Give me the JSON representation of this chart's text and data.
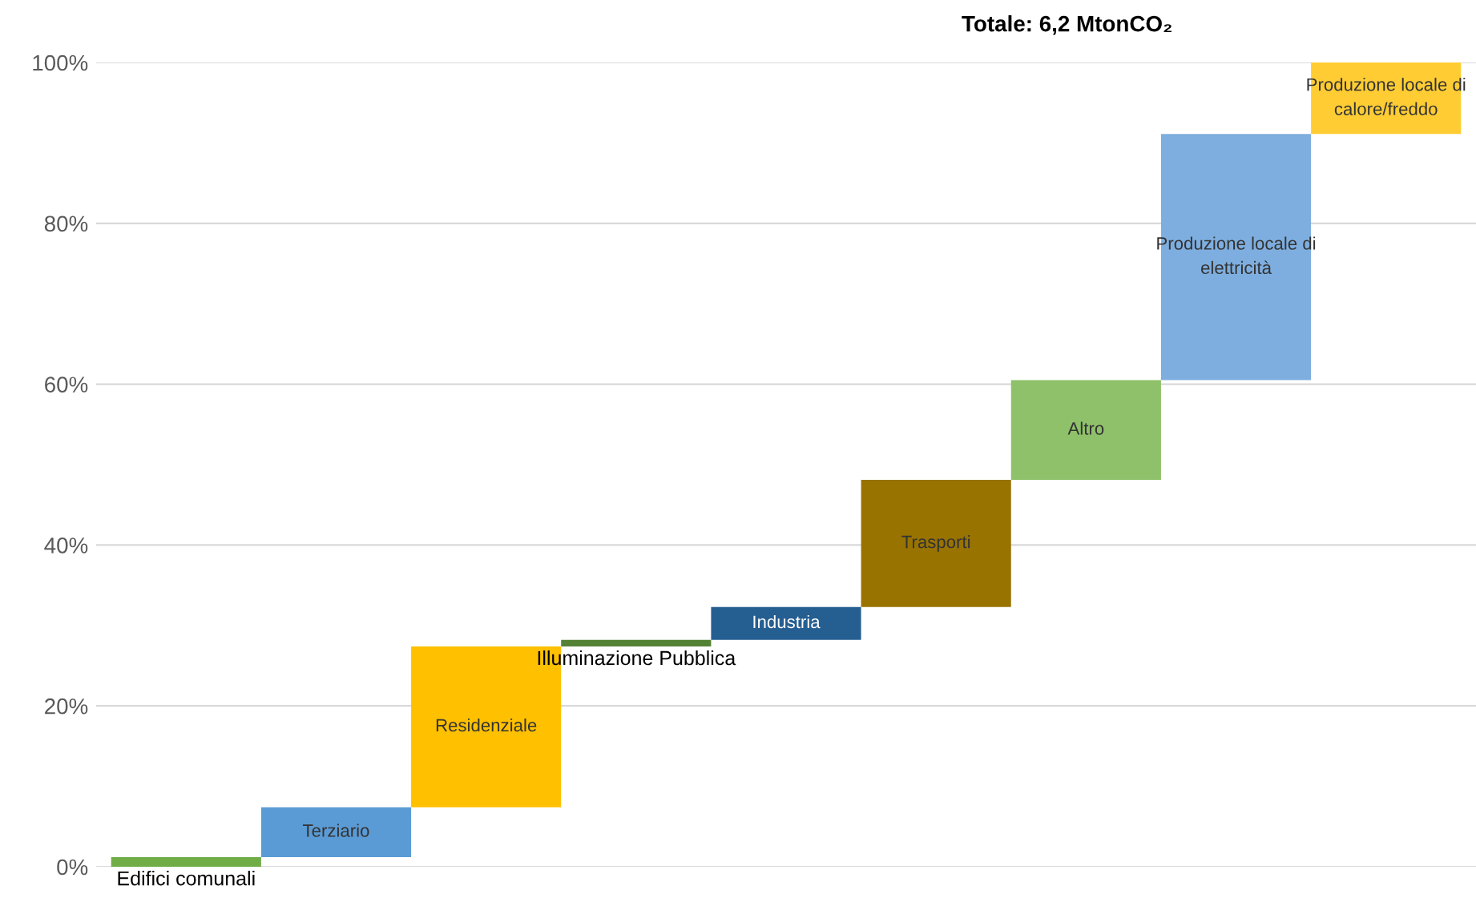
{
  "chart_data": {
    "type": "bar",
    "title": "Totale: 6,2 MtonCO₂",
    "categories": [
      "Edifici comunali",
      "Terziario",
      "Residenziale",
      "Illuminazione Pubblica",
      "Industria",
      "Trasporti",
      "Altro",
      "Produzione locale di\nelettricità",
      "Produzione locale di\ncalore/freddo"
    ],
    "base": [
      0,
      1.2,
      7.4,
      27.4,
      28.2,
      32.3,
      48.1,
      60.5,
      91.1
    ],
    "values": [
      1.2,
      6.2,
      20,
      0.8,
      4.1,
      15.8,
      12.4,
      30.6,
      8.9
    ],
    "colors": [
      "#70ad47",
      "#5b9bd5",
      "#ffc000",
      "#548235",
      "#255e91",
      "#997300",
      "#8fc16a",
      "#7eaedf",
      "#ffcd33"
    ],
    "ylim": [
      0,
      100
    ],
    "yticks": [
      {
        "value": 0,
        "label": "0%"
      },
      {
        "value": 20,
        "label": "20%"
      },
      {
        "value": 40,
        "label": "40%"
      },
      {
        "value": 60,
        "label": "60%"
      },
      {
        "value": 80,
        "label": "80%"
      },
      {
        "value": 100,
        "label": "100%"
      }
    ],
    "grid": "y",
    "tick_labels": "y",
    "legend": false
  }
}
